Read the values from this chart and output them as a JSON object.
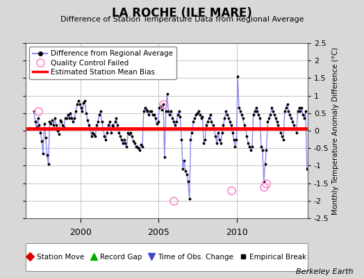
{
  "title": "LA ROCHE (ILE MARE)",
  "subtitle": "Difference of Station Temperature Data from Regional Average",
  "ylabel": "Monthly Temperature Anomaly Difference (°C)",
  "xlim": [
    1996.5,
    2014.5
  ],
  "ylim": [
    -2.5,
    2.5
  ],
  "yticks": [
    -2.5,
    -2.0,
    -1.5,
    -1.0,
    -0.5,
    0.0,
    0.5,
    1.0,
    1.5,
    2.0,
    2.5
  ],
  "bias_value": 0.05,
  "line_color": "#4444cc",
  "line_color_light": "#8888ee",
  "marker_color": "#000000",
  "bias_color": "#ff0000",
  "qc_color": "#ff88cc",
  "bg_color": "#d8d8d8",
  "plot_bg_color": "#ffffff",
  "grid_color": "#bbbbbb",
  "credit": "Berkeley Earth",
  "time_series": [
    1997.04,
    1997.12,
    1997.21,
    1997.29,
    1997.37,
    1997.46,
    1997.54,
    1997.62,
    1997.71,
    1997.79,
    1997.87,
    1997.96,
    1998.04,
    1998.12,
    1998.21,
    1998.29,
    1998.37,
    1998.46,
    1998.54,
    1998.62,
    1998.71,
    1998.79,
    1998.87,
    1998.96,
    1999.04,
    1999.12,
    1999.21,
    1999.29,
    1999.37,
    1999.46,
    1999.54,
    1999.62,
    1999.71,
    1999.79,
    1999.87,
    1999.96,
    2000.04,
    2000.12,
    2000.21,
    2000.29,
    2000.37,
    2000.46,
    2000.54,
    2000.62,
    2000.71,
    2000.79,
    2000.87,
    2000.96,
    2001.04,
    2001.12,
    2001.21,
    2001.29,
    2001.37,
    2001.46,
    2001.54,
    2001.62,
    2001.71,
    2001.79,
    2001.87,
    2001.96,
    2002.04,
    2002.12,
    2002.21,
    2002.29,
    2002.37,
    2002.46,
    2002.54,
    2002.62,
    2002.71,
    2002.79,
    2002.87,
    2002.96,
    2003.04,
    2003.12,
    2003.21,
    2003.29,
    2003.37,
    2003.46,
    2003.54,
    2003.62,
    2003.71,
    2003.79,
    2003.87,
    2003.96,
    2004.04,
    2004.12,
    2004.21,
    2004.29,
    2004.37,
    2004.46,
    2004.54,
    2004.62,
    2004.71,
    2004.79,
    2004.87,
    2004.96,
    2005.04,
    2005.12,
    2005.21,
    2005.29,
    2005.37,
    2005.46,
    2005.54,
    2005.62,
    2005.71,
    2005.79,
    2005.87,
    2005.96,
    2006.04,
    2006.12,
    2006.21,
    2006.29,
    2006.37,
    2006.46,
    2006.54,
    2006.62,
    2006.71,
    2006.79,
    2006.87,
    2006.96,
    2007.04,
    2007.12,
    2007.21,
    2007.29,
    2007.37,
    2007.46,
    2007.54,
    2007.62,
    2007.71,
    2007.79,
    2007.87,
    2007.96,
    2008.04,
    2008.12,
    2008.21,
    2008.29,
    2008.37,
    2008.46,
    2008.54,
    2008.62,
    2008.71,
    2008.79,
    2008.87,
    2008.96,
    2009.04,
    2009.12,
    2009.21,
    2009.29,
    2009.37,
    2009.46,
    2009.54,
    2009.62,
    2009.71,
    2009.79,
    2009.87,
    2009.96,
    2010.04,
    2010.12,
    2010.21,
    2010.29,
    2010.37,
    2010.46,
    2010.54,
    2010.62,
    2010.71,
    2010.79,
    2010.87,
    2010.96,
    2011.04,
    2011.12,
    2011.21,
    2011.29,
    2011.37,
    2011.46,
    2011.54,
    2011.62,
    2011.71,
    2011.79,
    2011.87,
    2011.96,
    2012.04,
    2012.12,
    2012.21,
    2012.29,
    2012.37,
    2012.46,
    2012.54,
    2012.62,
    2012.71,
    2012.79,
    2012.87,
    2012.96,
    2013.04,
    2013.12,
    2013.21,
    2013.29,
    2013.37,
    2013.46,
    2013.54,
    2013.62,
    2013.71,
    2013.79,
    2013.87,
    2013.96,
    2014.04,
    2014.12,
    2014.21,
    2014.29,
    2014.37,
    2014.46
  ],
  "values": [
    0.55,
    0.25,
    0.1,
    0.35,
    0.15,
    -0.05,
    -0.3,
    -0.65,
    0.2,
    -0.2,
    -0.7,
    -0.95,
    0.25,
    0.2,
    0.3,
    0.15,
    0.35,
    0.15,
    0.0,
    -0.1,
    0.3,
    0.25,
    0.15,
    0.1,
    0.35,
    0.35,
    0.45,
    0.35,
    0.5,
    0.35,
    0.25,
    0.35,
    0.55,
    0.75,
    0.85,
    0.75,
    0.65,
    0.55,
    0.8,
    0.85,
    0.5,
    0.3,
    0.15,
    0.05,
    -0.15,
    -0.05,
    -0.1,
    -0.15,
    0.15,
    0.25,
    0.45,
    0.55,
    0.25,
    0.05,
    -0.15,
    -0.25,
    -0.05,
    0.15,
    0.25,
    -0.05,
    0.15,
    0.1,
    0.25,
    0.35,
    0.15,
    -0.05,
    -0.15,
    -0.25,
    -0.35,
    -0.25,
    -0.35,
    -0.45,
    -0.05,
    -0.1,
    -0.05,
    -0.15,
    -0.3,
    -0.35,
    -0.45,
    -0.45,
    -0.5,
    -0.55,
    -0.4,
    -0.45,
    0.55,
    0.65,
    0.6,
    0.55,
    0.45,
    0.55,
    0.55,
    0.45,
    0.45,
    0.35,
    0.2,
    0.25,
    0.65,
    0.7,
    0.6,
    0.75,
    -0.75,
    0.55,
    1.05,
    0.55,
    0.45,
    0.55,
    0.35,
    0.25,
    0.15,
    0.25,
    0.45,
    0.55,
    0.4,
    -0.25,
    -1.1,
    -0.85,
    -1.15,
    -1.25,
    -1.45,
    -1.95,
    -0.25,
    -0.05,
    0.25,
    0.35,
    0.45,
    0.5,
    0.55,
    0.45,
    0.35,
    0.4,
    -0.35,
    -0.25,
    0.15,
    0.25,
    0.35,
    0.45,
    0.25,
    0.15,
    0.05,
    -0.15,
    -0.35,
    -0.05,
    -0.25,
    -0.35,
    -0.05,
    0.15,
    0.35,
    0.55,
    0.45,
    0.35,
    0.25,
    0.15,
    -0.05,
    -0.25,
    -0.45,
    -0.25,
    1.55,
    0.65,
    0.55,
    0.45,
    0.35,
    0.15,
    0.05,
    -0.15,
    -0.35,
    -0.45,
    -0.55,
    -0.45,
    0.45,
    0.55,
    0.65,
    0.55,
    0.45,
    0.35,
    -0.45,
    -0.55,
    -1.45,
    -0.95,
    -0.55,
    0.25,
    0.35,
    0.45,
    0.65,
    0.55,
    0.45,
    0.35,
    0.25,
    0.15,
    0.05,
    -0.05,
    -0.15,
    -0.25,
    0.55,
    0.65,
    0.75,
    0.55,
    0.45,
    0.35,
    0.25,
    0.15,
    0.05,
    -0.05,
    0.55,
    0.65,
    0.55,
    0.65,
    0.45,
    0.35,
    0.55,
    -1.1
  ],
  "qc_failed_times": [
    1997.29,
    2005.29,
    2005.96,
    2009.62,
    2011.71,
    2011.87
  ],
  "qc_failed_values": [
    0.55,
    0.75,
    -2.0,
    -1.7,
    -1.6,
    -1.5
  ],
  "xticks": [
    2000,
    2005,
    2010
  ],
  "xtick_labels": [
    "2000",
    "2005",
    "2010"
  ]
}
